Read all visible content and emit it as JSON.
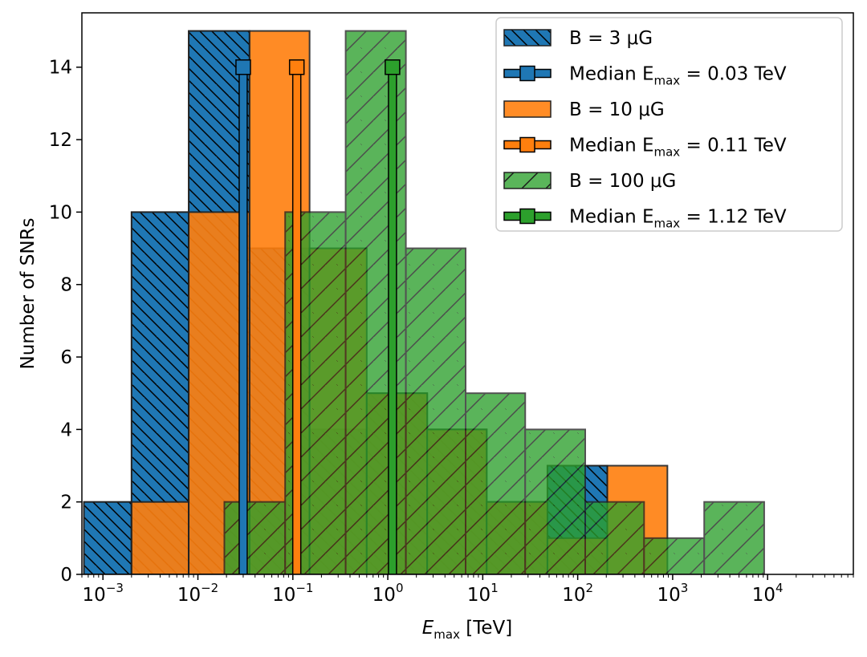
{
  "chart_data": {
    "type": "histogram",
    "xscale": "log",
    "xlabel_main": "E",
    "xlabel_sub": "max",
    "xlabel_unit": " [TeV]",
    "ylabel": "Number of SNRs",
    "xlim": [
      0.0006,
      80000
    ],
    "ylim": [
      0,
      15.5
    ],
    "yticks": [
      0,
      2,
      4,
      6,
      8,
      10,
      12,
      14
    ],
    "xticks": [
      {
        "value": 0.001,
        "base": "10",
        "exp": "−3"
      },
      {
        "value": 0.01,
        "base": "10",
        "exp": "−2"
      },
      {
        "value": 0.1,
        "base": "10",
        "exp": "−1"
      },
      {
        "value": 1,
        "base": "10",
        "exp": "0"
      },
      {
        "value": 10,
        "base": "10",
        "exp": "1"
      },
      {
        "value": 100,
        "base": "10",
        "exp": "2"
      },
      {
        "value": 1000,
        "base": "10",
        "exp": "3"
      },
      {
        "value": 10000,
        "base": "10",
        "exp": "4"
      }
    ],
    "series": [
      {
        "name": "B = 3 μG",
        "color": "#1f77b4",
        "hatch": "backslash",
        "opacity": 1.0,
        "bins": [
          {
            "x0": 0.00063,
            "x1": 0.002,
            "count": 2
          },
          {
            "x0": 0.002,
            "x1": 0.008,
            "count": 10
          },
          {
            "x0": 0.008,
            "x1": 0.035,
            "count": 15
          },
          {
            "x0": 0.035,
            "x1": 0.15,
            "count": 9
          },
          {
            "x0": 0.15,
            "x1": 0.6,
            "count": 4
          },
          {
            "x0": 0.6,
            "x1": 2.6,
            "count": 5
          },
          {
            "x0": 2.6,
            "x1": 11,
            "count": 4
          },
          {
            "x0": 11,
            "x1": 48,
            "count": 2
          },
          {
            "x0": 48,
            "x1": 205,
            "count": 3
          }
        ],
        "median": 0.03,
        "median_label": "Median E",
        "median_sub": "max",
        "median_value": " = 0.03 TeV"
      },
      {
        "name": "B = 10 μG",
        "color": "#ff7f0e",
        "hatch": "none",
        "opacity": 0.9,
        "bins": [
          {
            "x0": 0.002,
            "x1": 0.008,
            "count": 2
          },
          {
            "x0": 0.008,
            "x1": 0.035,
            "count": 10
          },
          {
            "x0": 0.035,
            "x1": 0.15,
            "count": 15
          },
          {
            "x0": 0.15,
            "x1": 0.6,
            "count": 9
          },
          {
            "x0": 0.6,
            "x1": 2.6,
            "count": 5
          },
          {
            "x0": 2.6,
            "x1": 11,
            "count": 4
          },
          {
            "x0": 11,
            "x1": 48,
            "count": 2
          },
          {
            "x0": 48,
            "x1": 205,
            "count": 1
          },
          {
            "x0": 205,
            "x1": 880,
            "count": 3
          }
        ],
        "median": 0.11,
        "median_label": "Median E",
        "median_sub": "max",
        "median_value": " = 0.11 TeV"
      },
      {
        "name": "B = 100 μG",
        "color": "#2ca02c",
        "hatch": "slash",
        "opacity": 0.78,
        "bins": [
          {
            "x0": 0.019,
            "x1": 0.083,
            "count": 2
          },
          {
            "x0": 0.083,
            "x1": 0.36,
            "count": 10
          },
          {
            "x0": 0.36,
            "x1": 1.55,
            "count": 15
          },
          {
            "x0": 1.55,
            "x1": 6.6,
            "count": 9
          },
          {
            "x0": 6.6,
            "x1": 28,
            "count": 5
          },
          {
            "x0": 28,
            "x1": 120,
            "count": 4
          },
          {
            "x0": 120,
            "x1": 500,
            "count": 2
          },
          {
            "x0": 500,
            "x1": 2150,
            "count": 1
          },
          {
            "x0": 2150,
            "x1": 9200,
            "count": 2
          }
        ],
        "median": 1.12,
        "median_label": "Median E",
        "median_sub": "max",
        "median_value": " = 1.12 TeV"
      }
    ],
    "legend_position": "upper-right"
  }
}
